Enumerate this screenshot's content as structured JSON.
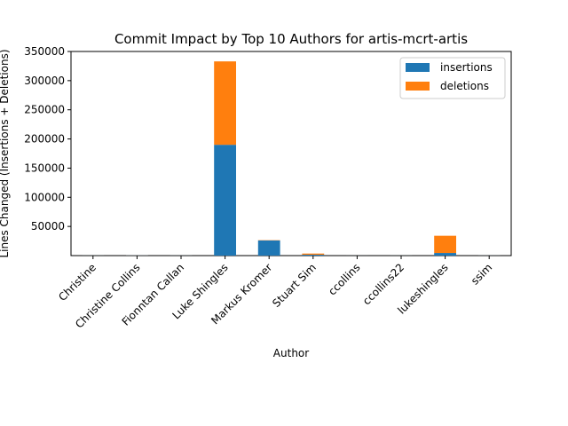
{
  "chart_data": {
    "type": "bar",
    "stacked": true,
    "title": "Commit Impact by Top 10 Authors for artis-mcrt-artis",
    "xlabel": "Author",
    "ylabel": "Lines Changed (Insertions + Deletions)",
    "ylim": [
      0,
      350000
    ],
    "yticks": [
      50000,
      100000,
      150000,
      200000,
      250000,
      300000,
      350000
    ],
    "categories": [
      "Christine",
      "Christine Collins",
      "Fionntan Callan",
      "Luke Shingles",
      "Markus Kromer",
      "Stuart Sim",
      "ccollins",
      "ccollins22",
      "lukeshingles",
      "ssim"
    ],
    "series": [
      {
        "name": "insertions",
        "color": "#1f77b4",
        "values": [
          120,
          300,
          150,
          190000,
          26000,
          1500,
          60,
          100,
          4500,
          150
        ]
      },
      {
        "name": "deletions",
        "color": "#ff7f0e",
        "values": [
          40,
          120,
          60,
          143000,
          500,
          2000,
          20,
          40,
          29500,
          60
        ]
      }
    ],
    "legend_position": "top-right",
    "grid": false
  }
}
